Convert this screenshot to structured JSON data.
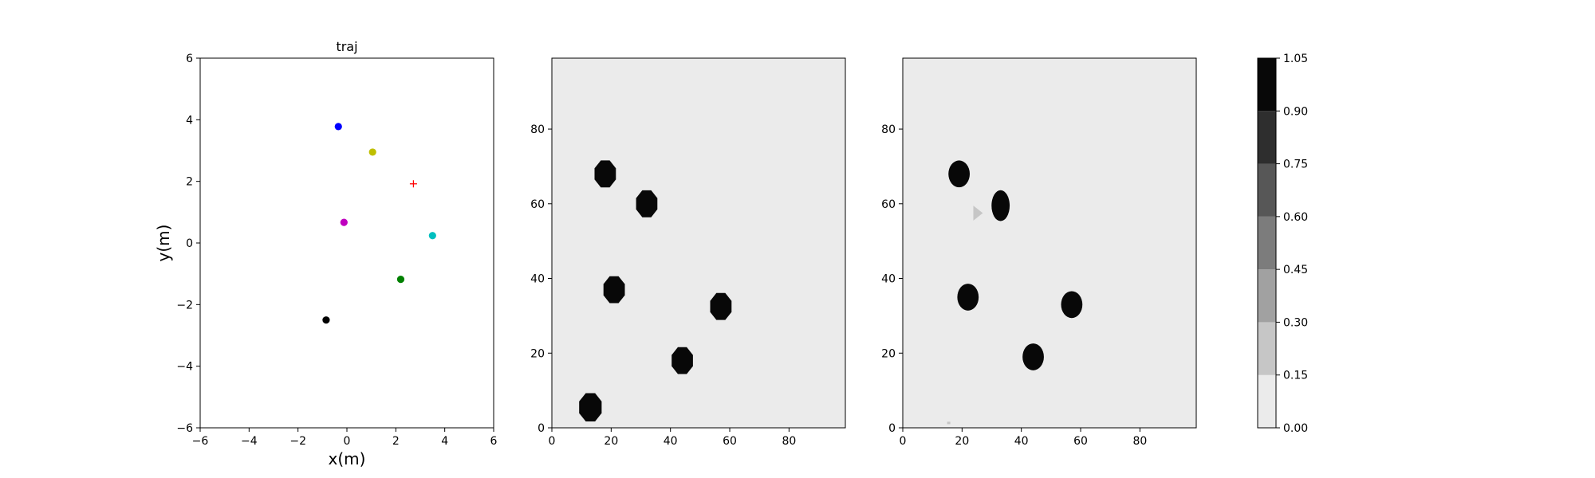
{
  "chart_data": [
    {
      "type": "scatter",
      "title": "traj",
      "xlabel": "x(m)",
      "ylabel": "y(m)",
      "xlim": [
        -6,
        6
      ],
      "ylim": [
        -6,
        6
      ],
      "xticks": [
        -6,
        -4,
        -2,
        0,
        2,
        4,
        6
      ],
      "yticks": [
        -6,
        -4,
        -2,
        0,
        2,
        4,
        6
      ],
      "grid": false,
      "points": [
        {
          "x": -0.35,
          "y": 3.78,
          "color": "#0000ff",
          "marker": "circle"
        },
        {
          "x": 1.05,
          "y": 2.95,
          "color": "#bfbf00",
          "marker": "circle"
        },
        {
          "x": 2.72,
          "y": 1.92,
          "color": "#ff0000",
          "marker": "plus"
        },
        {
          "x": -0.12,
          "y": 0.67,
          "color": "#bf00bf",
          "marker": "circle"
        },
        {
          "x": 3.5,
          "y": 0.24,
          "color": "#00bfbf",
          "marker": "circle"
        },
        {
          "x": 2.2,
          "y": -1.18,
          "color": "#008000",
          "marker": "circle"
        },
        {
          "x": -0.85,
          "y": -2.5,
          "color": "#000000",
          "marker": "circle"
        }
      ]
    },
    {
      "type": "heatmap",
      "title": "",
      "xlim": [
        0,
        99
      ],
      "ylim": [
        0,
        99
      ],
      "xticks": [
        0,
        20,
        40,
        60,
        80
      ],
      "yticks": [
        0,
        20,
        40,
        60,
        80
      ],
      "background_value": 0.05,
      "blobs": [
        {
          "cx": 18,
          "cy": 68,
          "r": 3.9,
          "value": 1.0,
          "shape": "octagon"
        },
        {
          "cx": 32,
          "cy": 60,
          "r": 3.9,
          "value": 1.0,
          "shape": "octagon"
        },
        {
          "cx": 21,
          "cy": 37,
          "r": 3.9,
          "value": 1.0,
          "shape": "octagon"
        },
        {
          "cx": 57,
          "cy": 32.5,
          "r": 3.9,
          "value": 1.0,
          "shape": "octagon"
        },
        {
          "cx": 44,
          "cy": 18,
          "r": 3.9,
          "value": 1.0,
          "shape": "octagon"
        },
        {
          "cx": 13,
          "cy": 5.5,
          "r": 4.1,
          "value": 1.0,
          "shape": "octagon"
        }
      ]
    },
    {
      "type": "heatmap",
      "title": "",
      "xlim": [
        0,
        99
      ],
      "ylim": [
        0,
        99
      ],
      "xticks": [
        0,
        20,
        40,
        60,
        80
      ],
      "yticks": [
        0,
        20,
        40,
        60,
        80
      ],
      "background_value": 0.05,
      "blobs": [
        {
          "cx": 19,
          "cy": 68,
          "r": 3.6,
          "value": 1.0,
          "shape": "circle"
        },
        {
          "cx": 33,
          "cy": 59.5,
          "r": 3.6,
          "value": 1.0,
          "shape": "ellipse"
        },
        {
          "cx": 22,
          "cy": 35,
          "r": 3.6,
          "value": 1.0,
          "shape": "circle"
        },
        {
          "cx": 57,
          "cy": 33,
          "r": 3.6,
          "value": 1.0,
          "shape": "circle"
        },
        {
          "cx": 44,
          "cy": 19,
          "r": 3.6,
          "value": 1.0,
          "shape": "circle"
        },
        {
          "cx": 25,
          "cy": 57.5,
          "r": 2.0,
          "value": 0.25,
          "shape": "arrow"
        },
        {
          "cx": 15.5,
          "cy": 1.3,
          "r": 0.6,
          "value": 0.25,
          "shape": "dot"
        }
      ]
    },
    {
      "type": "colorbar",
      "levels": [
        0.0,
        0.15,
        0.3,
        0.45,
        0.6,
        0.75,
        0.9,
        1.05
      ],
      "tick_labels": [
        "0.00",
        "0.15",
        "0.30",
        "0.45",
        "0.60",
        "0.75",
        "0.90",
        "1.05"
      ],
      "colors": [
        "#ebebeb",
        "#c6c6c6",
        "#a1a1a1",
        "#7c7c7c",
        "#575757",
        "#2e2e2e",
        "#080808"
      ]
    }
  ]
}
